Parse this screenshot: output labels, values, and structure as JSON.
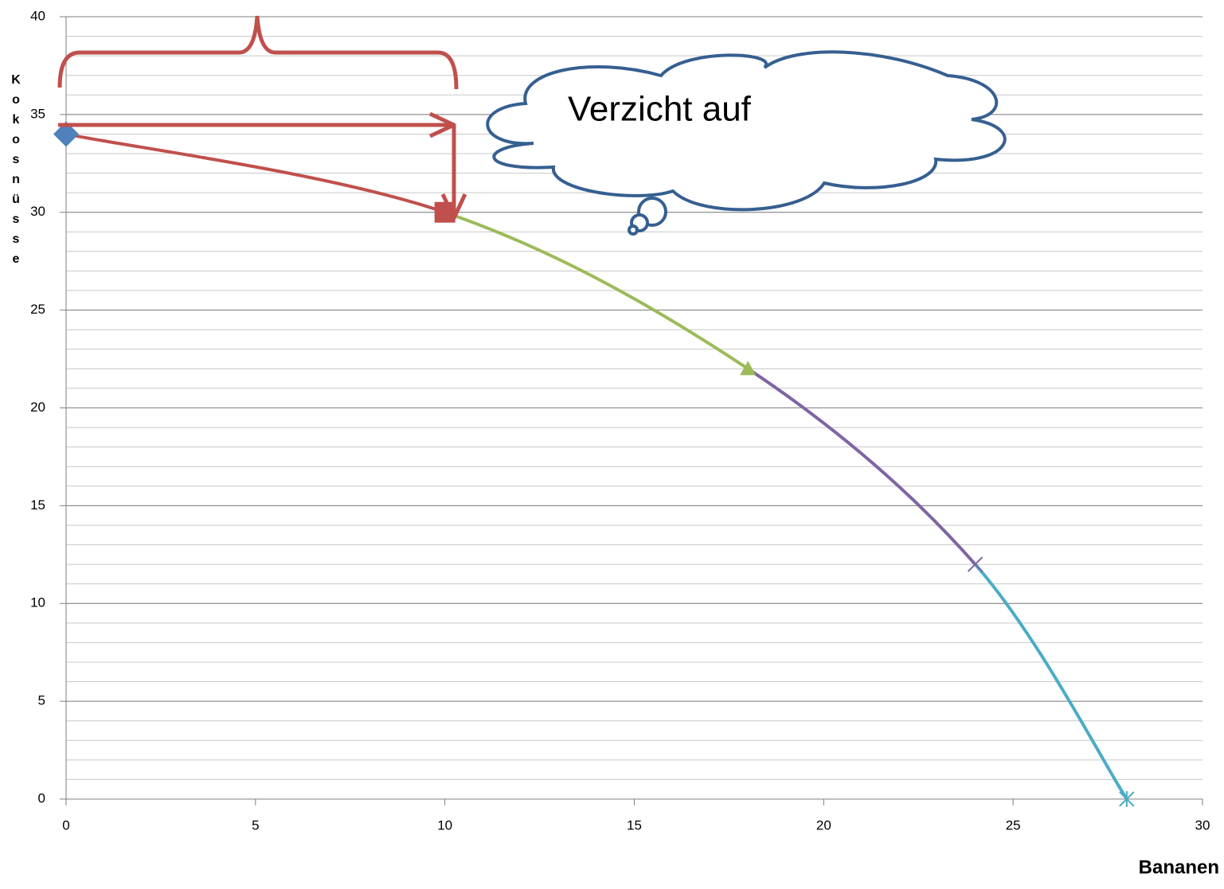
{
  "chart_data": {
    "type": "line",
    "xlabel": "Bananen",
    "ylabel": "Kokosnüsse",
    "annotation": "Verzicht auf",
    "series": [
      {
        "color": "#4f81bd",
        "marker": "diamond",
        "x": [
          0
        ],
        "values": [
          34
        ]
      },
      {
        "color": "#c0504d",
        "marker": "square",
        "x": [
          0,
          10
        ],
        "values": [
          34,
          30
        ]
      },
      {
        "color": "#9bbb59",
        "marker": "triangle",
        "x": [
          10,
          18
        ],
        "values": [
          30,
          22
        ]
      },
      {
        "color": "#8064a2",
        "marker": "x",
        "x": [
          18,
          24
        ],
        "values": [
          22,
          12
        ]
      },
      {
        "color": "#4bacc6",
        "marker": "star",
        "x": [
          24,
          28
        ],
        "values": [
          12,
          0
        ]
      }
    ],
    "xlim": [
      0,
      30
    ],
    "xticks": [
      0,
      5,
      10,
      15,
      20,
      25,
      30
    ],
    "ylim": [
      0,
      40
    ],
    "yticks": [
      0,
      5,
      10,
      15,
      20,
      25,
      30,
      35,
      40
    ],
    "grid": true,
    "minor_grid_step": 1
  }
}
